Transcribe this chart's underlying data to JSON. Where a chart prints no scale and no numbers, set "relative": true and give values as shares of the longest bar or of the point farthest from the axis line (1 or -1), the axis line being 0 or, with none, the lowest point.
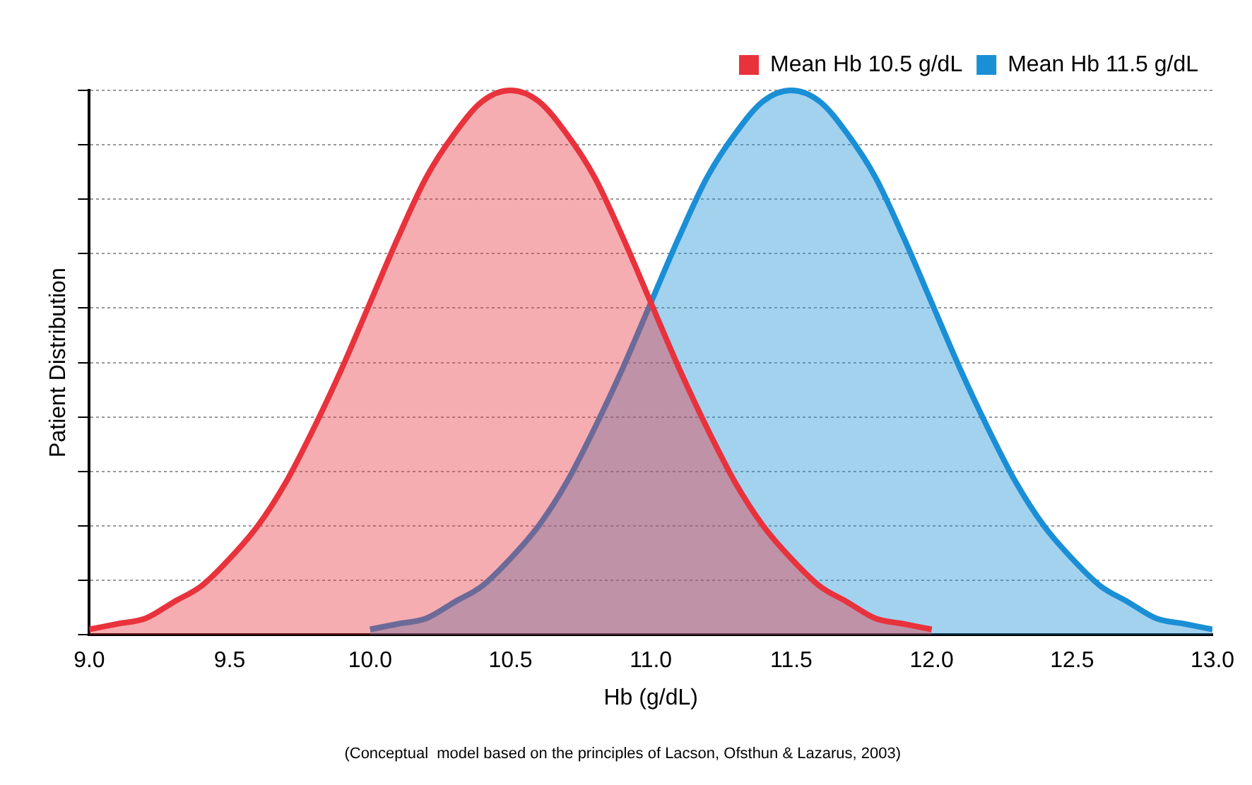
{
  "chart_data": {
    "type": "area",
    "relative": true,
    "xlabel": "Hb (g/dL)",
    "ylabel": "Patient Distribution",
    "xlim": [
      9,
      13
    ],
    "xticks": [
      {
        "value": 9,
        "label": "9.0"
      },
      {
        "value": 9.5,
        "label": "9.5"
      },
      {
        "value": 10,
        "label": "10.0"
      },
      {
        "value": 10.5,
        "label": "10.5"
      },
      {
        "value": 11,
        "label": "11.0"
      },
      {
        "value": 11.5,
        "label": "11.5"
      },
      {
        "value": 12,
        "label": "12.0"
      },
      {
        "value": 12.5,
        "label": "12.5"
      },
      {
        "value": 13,
        "label": "13.0"
      }
    ],
    "series": [
      {
        "name": "Mean Hb 10.5 g/dL",
        "color": "#e8323c",
        "x": [
          9.0,
          9.1,
          9.2,
          9.3,
          9.4,
          9.5,
          9.6,
          9.7,
          9.8,
          9.9,
          10.0,
          10.1,
          10.2,
          10.3,
          10.4,
          10.5,
          10.6,
          10.7,
          10.8,
          10.9,
          11.0,
          11.1,
          11.2,
          11.3,
          11.4,
          11.5,
          11.6,
          11.7,
          11.8,
          11.9,
          12.0
        ],
        "values": [
          0.01,
          0.02,
          0.03,
          0.06,
          0.09,
          0.14,
          0.2,
          0.28,
          0.38,
          0.49,
          0.61,
          0.73,
          0.84,
          0.92,
          0.98,
          1,
          0.98,
          0.92,
          0.84,
          0.73,
          0.61,
          0.49,
          0.38,
          0.28,
          0.2,
          0.14,
          0.09,
          0.06,
          0.03,
          0.02,
          0.01
        ]
      },
      {
        "name": "Mean Hb 11.5 g/dL",
        "color": "#1a8fd6",
        "x": [
          10.0,
          10.1,
          10.2,
          10.3,
          10.4,
          10.5,
          10.6,
          10.7,
          10.8,
          10.9,
          11.0,
          11.1,
          11.2,
          11.3,
          11.4,
          11.5,
          11.6,
          11.7,
          11.8,
          11.9,
          12.0,
          12.1,
          12.2,
          12.3,
          12.4,
          12.5,
          12.6,
          12.7,
          12.8,
          12.9,
          13.0
        ],
        "values": [
          0.01,
          0.02,
          0.03,
          0.06,
          0.09,
          0.14,
          0.2,
          0.28,
          0.38,
          0.49,
          0.61,
          0.73,
          0.84,
          0.92,
          0.98,
          1,
          0.98,
          0.92,
          0.84,
          0.73,
          0.61,
          0.49,
          0.38,
          0.28,
          0.2,
          0.14,
          0.09,
          0.06,
          0.03,
          0.02,
          0.01
        ]
      }
    ],
    "grid": "y",
    "legend": "top right",
    "marker": "none",
    "line_style": "solid",
    "annotations": [
      "(Conceptual  model based on the principles of Lacson, Ofsthun & Lazarus, 2003)"
    ]
  }
}
